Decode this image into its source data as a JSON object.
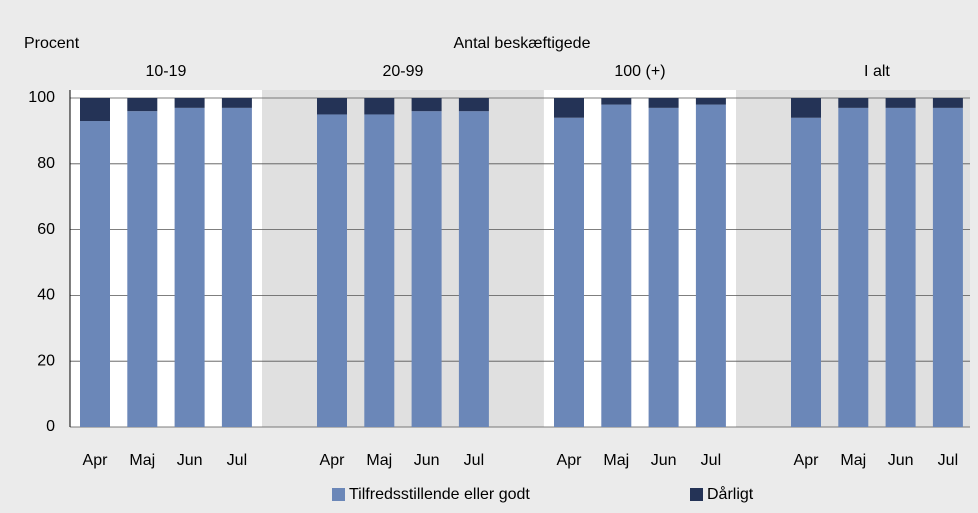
{
  "chart_data": {
    "type": "stacked_bar",
    "title": "Antal beskæftigede",
    "y_label": "Procent",
    "groups": [
      "10-19",
      "20-99",
      "100 (+)",
      "I alt"
    ],
    "categories": [
      "Apr",
      "Maj",
      "Jun",
      "Jul",
      "Apr",
      "Maj",
      "Jun",
      "Jul",
      "Apr",
      "Maj",
      "Jun",
      "Jul",
      "Apr",
      "Maj",
      "Jun",
      "Jul"
    ],
    "series": [
      {
        "name": "Tilfredsstillende eller godt",
        "color": "#6b87b8",
        "values": [
          93,
          96,
          97,
          97,
          95,
          95,
          96,
          96,
          94,
          98,
          97,
          98,
          94,
          97,
          97,
          97
        ]
      },
      {
        "name": "Dårligt",
        "color": "#243356",
        "values": [
          7,
          4,
          3,
          3,
          5,
          5,
          4,
          4,
          6,
          2,
          3,
          2,
          6,
          3,
          3,
          3
        ]
      }
    ],
    "ylim": [
      0,
      100
    ],
    "yticks": [
      0,
      20,
      40,
      60,
      80,
      100
    ],
    "grid": true
  }
}
